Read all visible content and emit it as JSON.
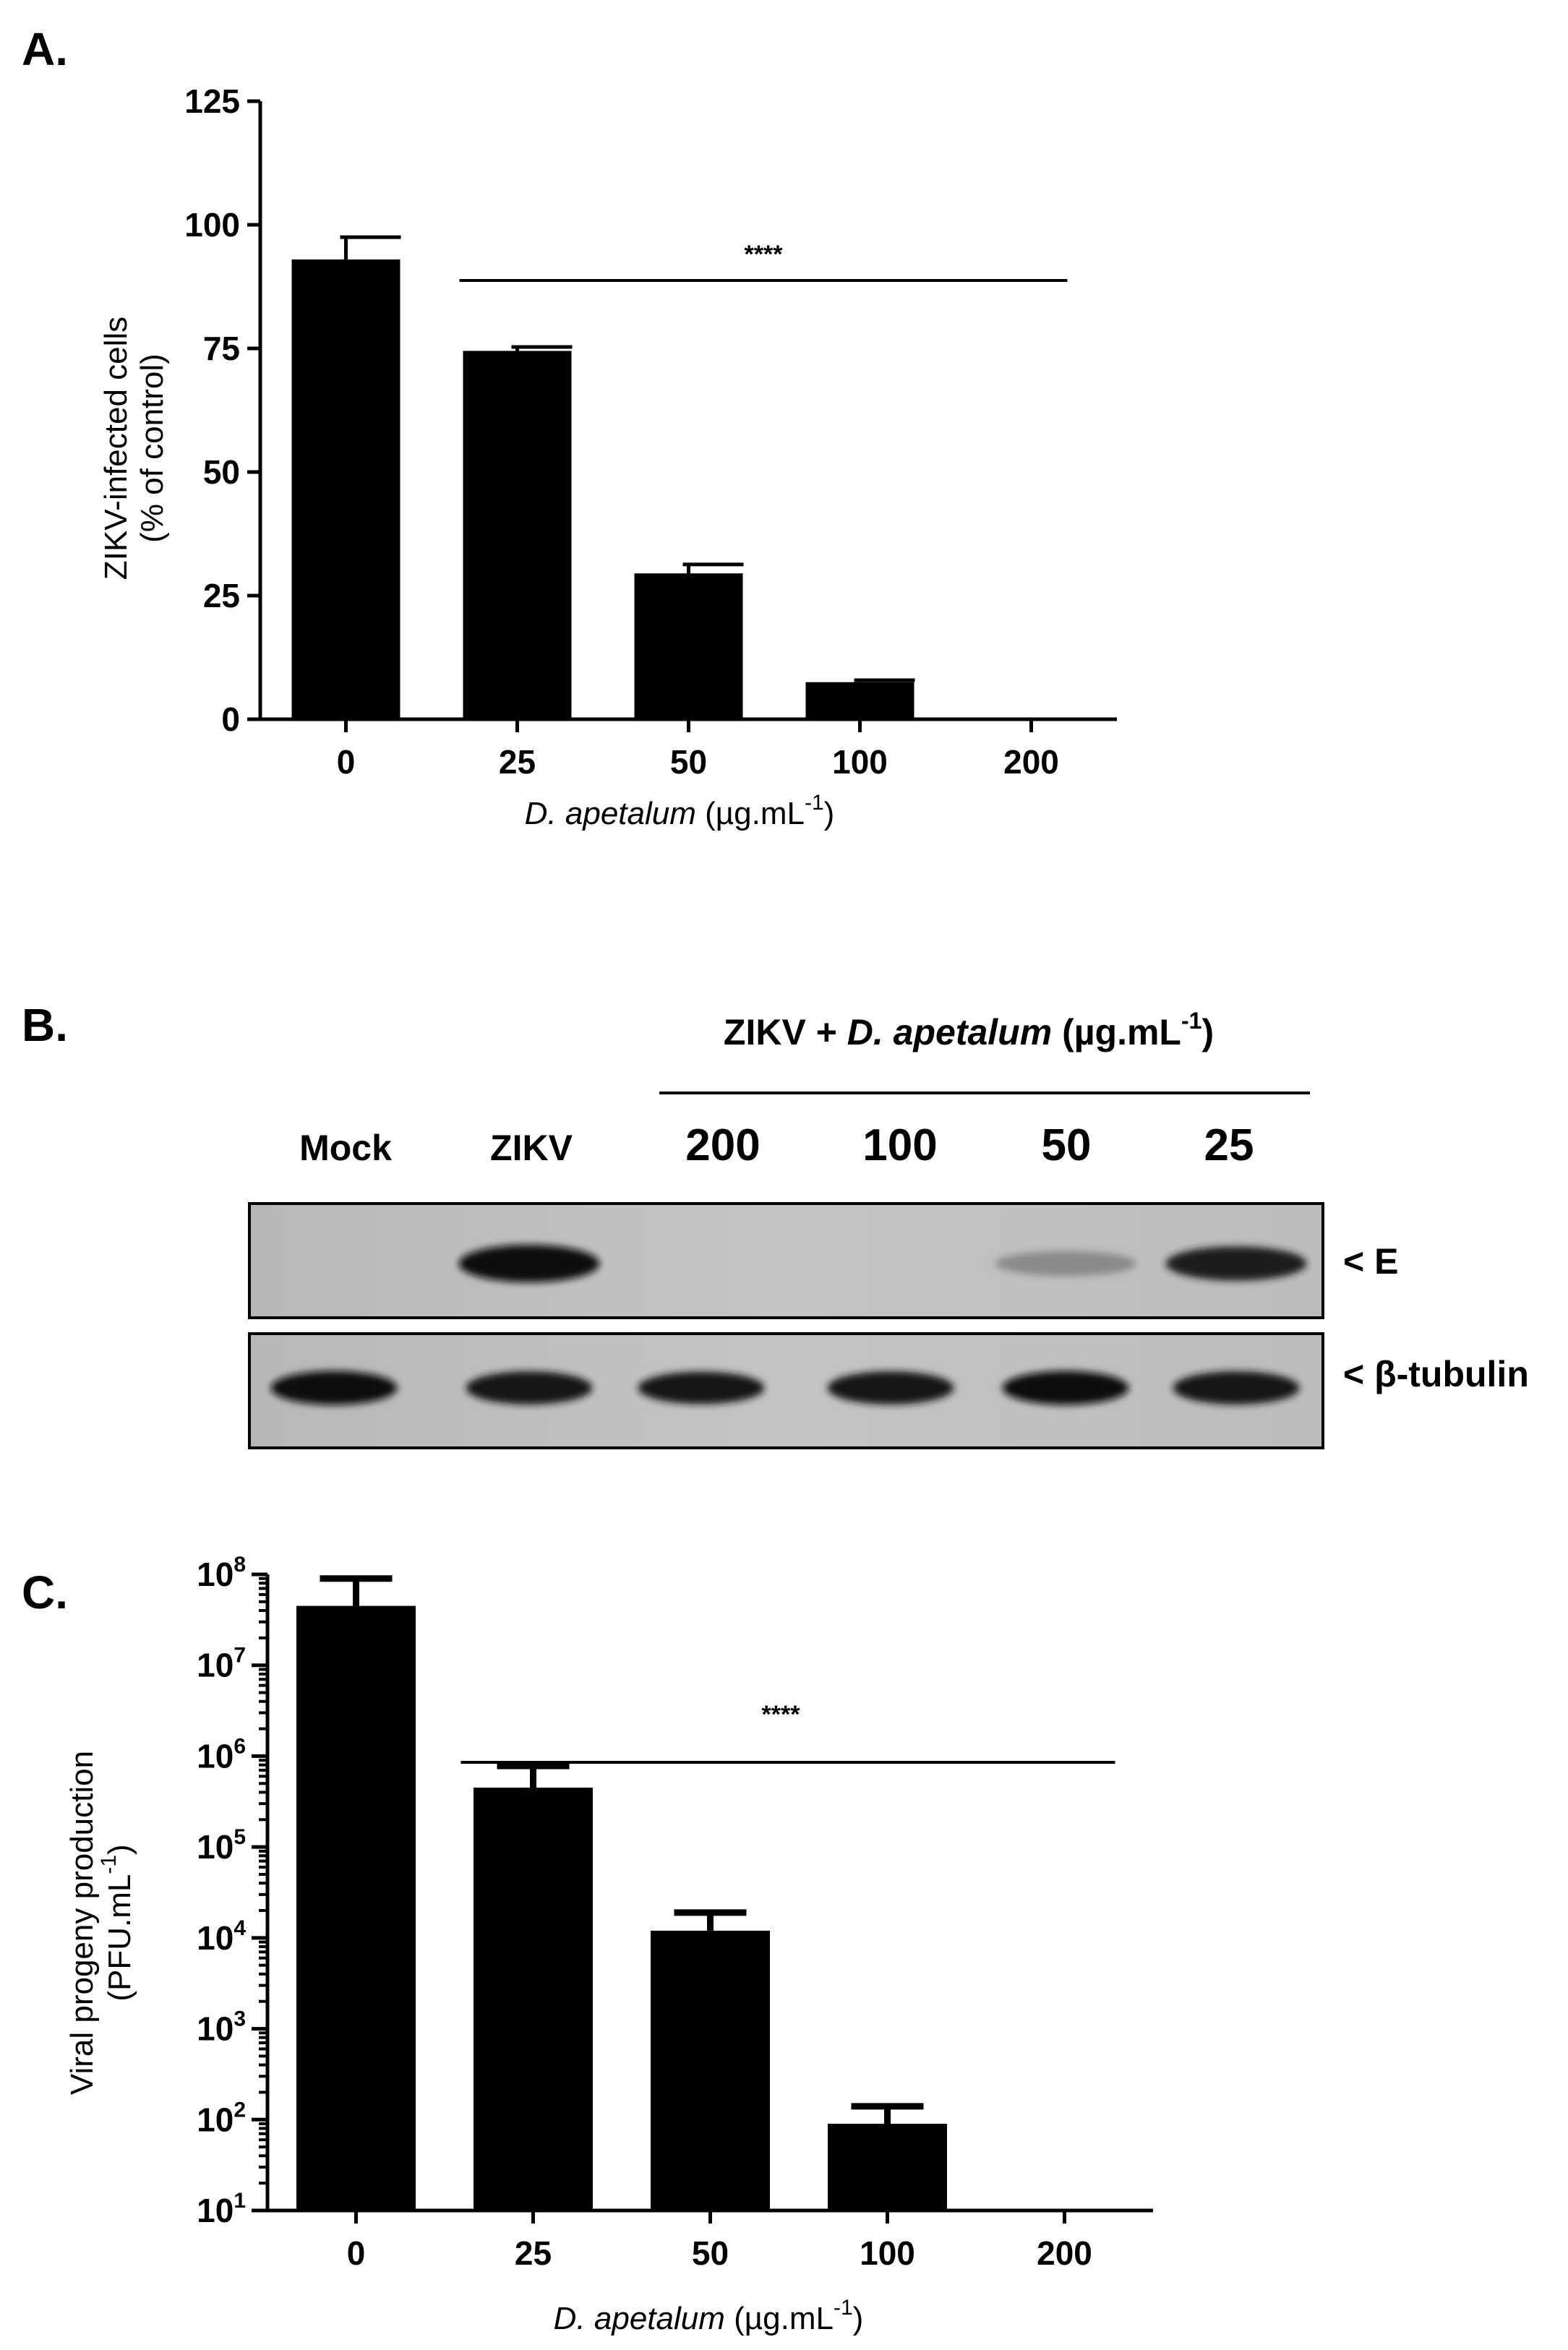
{
  "figure": {
    "panels": [
      "A.",
      "B.",
      "C."
    ]
  },
  "chart_data": [
    {
      "panel": "A.",
      "type": "bar",
      "categories": [
        "0",
        "25",
        "50",
        "100",
        "200"
      ],
      "values": [
        93,
        74.5,
        29.5,
        7.5,
        0
      ],
      "errors": [
        4.5,
        0.8,
        1.8,
        0.4,
        0
      ],
      "ylabel_line1": "ZIKV-infected cells",
      "ylabel_line2": "(% of control)",
      "xlabel_italic": "D. apetalum",
      "xlabel_unit": "(µg.mL",
      "xlabel_sup": "-1",
      "xlabel_close": ")",
      "yticks": [
        "0",
        "25",
        "50",
        "75",
        "100",
        "125"
      ],
      "ylim": [
        0,
        125
      ],
      "significance": "****",
      "bar_color": "#000000"
    },
    {
      "panel": "C.",
      "type": "bar",
      "yscale": "log",
      "categories": [
        "0",
        "25",
        "50",
        "100",
        "200"
      ],
      "values": [
        45000000,
        450000,
        12000,
        90,
        10
      ],
      "error_tops": [
        90000000,
        780000,
        19000,
        140,
        10
      ],
      "ylabel_line1": "Viral progeny production",
      "ylabel_line2_text": "(PFU.mL",
      "ylabel_line2_sup": "-1",
      "ylabel_line2_close": ")",
      "xlabel_italic": "D. apetalum",
      "xlabel_unit": "(µg.mL",
      "xlabel_sup": "-1",
      "xlabel_close": ")",
      "ytick_base": "10",
      "ytick_exponents": [
        "1",
        "2",
        "3",
        "4",
        "5",
        "6",
        "7",
        "8"
      ],
      "ylim": [
        10,
        100000000
      ],
      "significance": "****",
      "bar_color": "#000000"
    }
  ],
  "western_blot": {
    "header_prefix": "ZIKV + ",
    "header_italic": "D. apetalum",
    "header_unit": " (µg.mL",
    "header_sup": "-1",
    "header_close": ")",
    "lanes": [
      "Mock",
      "ZIKV",
      "200",
      "100",
      "50",
      "25"
    ],
    "bands": [
      {
        "label": "< E",
        "intensities": [
          0,
          1.0,
          0,
          0,
          0.25,
          0.8
        ]
      },
      {
        "label": "< β-tubulin",
        "intensities": [
          0.95,
          0.9,
          0.85,
          0.9,
          0.95,
          0.9
        ]
      }
    ]
  }
}
